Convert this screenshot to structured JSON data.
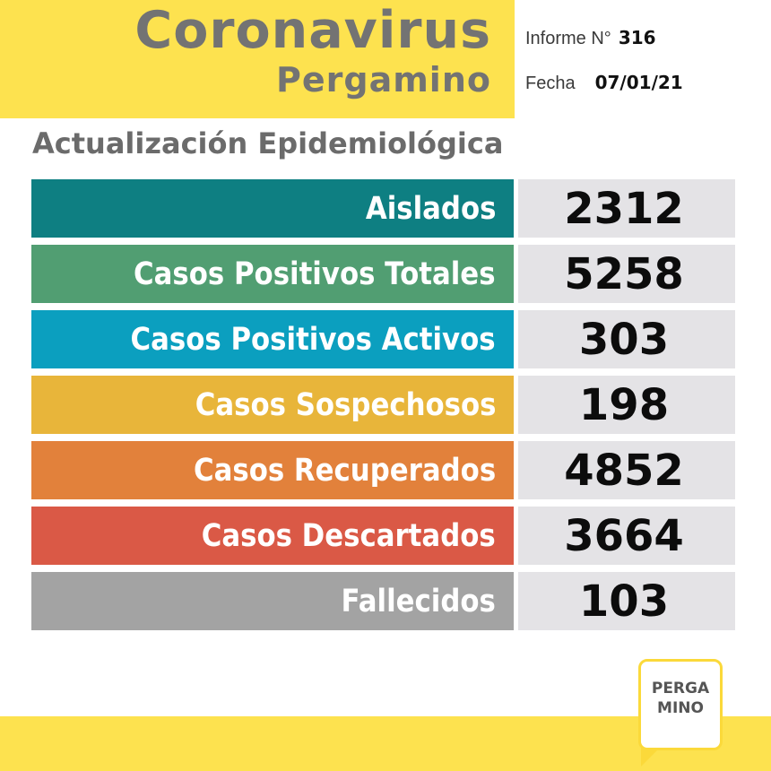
{
  "header": {
    "title": "Coronavirus",
    "subtitle": "Pergamino",
    "informe_label": "Informe N°",
    "informe_value": "316",
    "fecha_label": "Fecha",
    "fecha_value": "07/01/21"
  },
  "section_heading": "Actualización Epidemiológica",
  "stats": [
    {
      "label": "Aislados",
      "value": "2312",
      "color": "#0e7f82"
    },
    {
      "label": "Casos Positivos Totales",
      "value": "5258",
      "color": "#519e72"
    },
    {
      "label": "Casos Positivos Activos",
      "value": "303",
      "color": "#0b9fbf"
    },
    {
      "label": "Casos Sospechosos",
      "value": "198",
      "color": "#e8b53a"
    },
    {
      "label": "Casos Recuperados",
      "value": "4852",
      "color": "#e2813b"
    },
    {
      "label": "Casos Descartados",
      "value": "3664",
      "color": "#da5946"
    },
    {
      "label": "Fallecidos",
      "value": "103",
      "color": "#a3a3a3"
    }
  ],
  "logo": {
    "line1": "PERGA",
    "line2": "MINO"
  },
  "colors": {
    "brand_yellow": "#fde24f",
    "title_gray": "#737373",
    "value_box": "#e4e3e6"
  }
}
